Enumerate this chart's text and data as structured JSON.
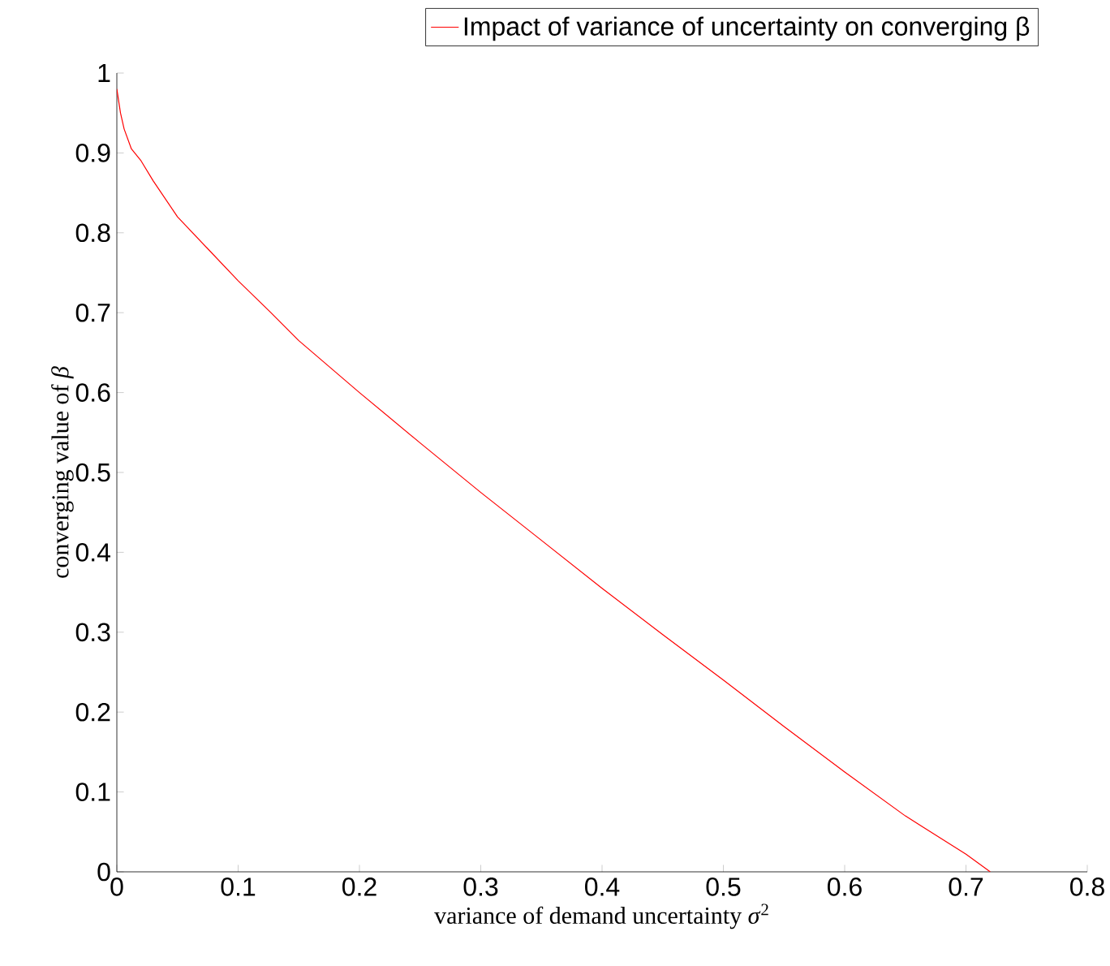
{
  "chart_data": {
    "type": "line",
    "xlabel": "variance of demand uncertainty *σ*$^{2}$",
    "ylabel": "converging value of *β*",
    "series": [
      {
        "name": "Impact of variance of uncertainty on converging β",
        "color": "#ff0000",
        "x": [
          0,
          0.003,
          0.006,
          0.012,
          0.02,
          0.03,
          0.05,
          0.075,
          0.1,
          0.127,
          0.15,
          0.2,
          0.25,
          0.3,
          0.35,
          0.4,
          0.45,
          0.5,
          0.55,
          0.6,
          0.65,
          0.7,
          0.72
        ],
        "values": [
          0.98,
          0.95,
          0.93,
          0.905,
          0.89,
          0.865,
          0.82,
          0.78,
          0.74,
          0.7,
          0.665,
          0.6,
          0.537,
          0.475,
          0.415,
          0.355,
          0.297,
          0.24,
          0.182,
          0.125,
          0.07,
          0.022,
          0
        ]
      }
    ],
    "xlim": [
      0,
      0.8
    ],
    "ylim": [
      0,
      1
    ],
    "xticks": [
      0,
      0.1,
      0.2,
      0.3,
      0.4,
      0.5,
      0.6,
      0.7,
      0.8
    ],
    "yticks": [
      0,
      0.1,
      0.2,
      0.3,
      0.4,
      0.5,
      0.6,
      0.7,
      0.8,
      0.9,
      1
    ],
    "grid": false,
    "legend": "top right",
    "marker": "none",
    "line_style": "solid"
  }
}
